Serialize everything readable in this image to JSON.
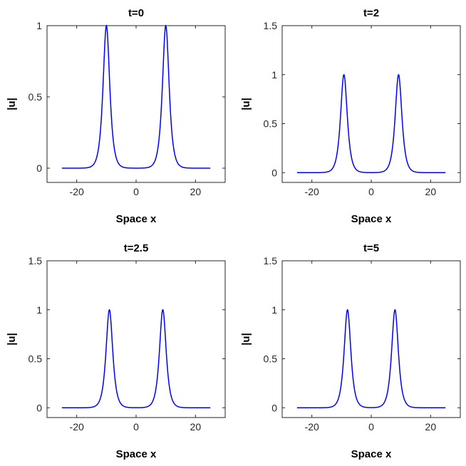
{
  "chart_data": [
    {
      "type": "line",
      "title": "t=0",
      "xlabel": "Space x",
      "ylabel": "|u|",
      "xlim": [
        -30,
        30
      ],
      "ylim": [
        -0.1,
        1
      ],
      "xticks": [
        -20,
        0,
        20
      ],
      "xtick_labels": [
        "-20",
        "0",
        "20"
      ],
      "yticks": [
        0,
        0.5,
        1
      ],
      "ytick_labels": [
        "0",
        "0.5",
        "1"
      ],
      "grid": false,
      "series": [
        {
          "color": "#0000ff",
          "x_range": [
            -25,
            25
          ],
          "peaks": [
            {
              "center": -10,
              "amplitude": 1
            },
            {
              "center": 10,
              "amplitude": 1
            }
          ]
        }
      ]
    },
    {
      "type": "line",
      "title": "t=2",
      "xlabel": "Space x",
      "ylabel": "|u|",
      "xlim": [
        -30,
        30
      ],
      "ylim": [
        -0.1,
        1.5
      ],
      "xticks": [
        -20,
        0,
        20
      ],
      "xtick_labels": [
        "-20",
        "0",
        "20"
      ],
      "yticks": [
        0,
        0.5,
        1,
        1.5
      ],
      "ytick_labels": [
        "0",
        "0.5",
        "1",
        "1.5"
      ],
      "grid": false,
      "series": [
        {
          "color": "#0000ff",
          "x_range": [
            -25,
            25
          ],
          "peaks": [
            {
              "center": -9.2,
              "amplitude": 1
            },
            {
              "center": 9.2,
              "amplitude": 1
            }
          ]
        }
      ]
    },
    {
      "type": "line",
      "title": "t=2.5",
      "xlabel": "Space x",
      "ylabel": "|u|",
      "xlim": [
        -30,
        30
      ],
      "ylim": [
        -0.1,
        1.5
      ],
      "xticks": [
        -20,
        0,
        20
      ],
      "xtick_labels": [
        "-20",
        "0",
        "20"
      ],
      "yticks": [
        0,
        0.5,
        1,
        1.5
      ],
      "ytick_labels": [
        "0",
        "0.5",
        "1",
        "1.5"
      ],
      "grid": false,
      "series": [
        {
          "color": "#0000ff",
          "x_range": [
            -25,
            25
          ],
          "peaks": [
            {
              "center": -9,
              "amplitude": 1
            },
            {
              "center": 9,
              "amplitude": 1
            }
          ]
        }
      ]
    },
    {
      "type": "line",
      "title": "t=5",
      "xlabel": "Space x",
      "ylabel": "|u|",
      "xlim": [
        -30,
        30
      ],
      "ylim": [
        -0.1,
        1.5
      ],
      "xticks": [
        -20,
        0,
        20
      ],
      "xtick_labels": [
        "-20",
        "0",
        "20"
      ],
      "yticks": [
        0,
        0.5,
        1,
        1.5
      ],
      "ytick_labels": [
        "0",
        "0.5",
        "1",
        "1.5"
      ],
      "grid": false,
      "series": [
        {
          "color": "#0000ff",
          "x_range": [
            -25,
            25
          ],
          "peaks": [
            {
              "center": -8,
              "amplitude": 1
            },
            {
              "center": 8,
              "amplitude": 1
            }
          ]
        }
      ]
    }
  ]
}
